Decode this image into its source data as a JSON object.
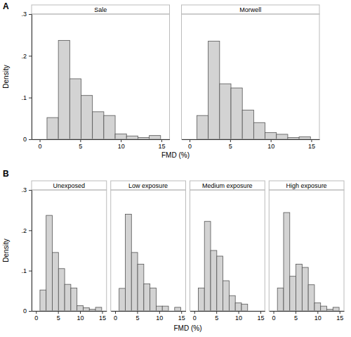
{
  "chart_data": [
    {
      "type": "histogram",
      "group": "A",
      "title": "Sale",
      "x_label": "FMD (%)",
      "y_label": "Density",
      "bins": [
        0.9,
        2.3,
        3.7,
        5.1,
        6.5,
        7.9,
        9.3,
        10.7,
        12.1,
        13.5,
        14.9
      ],
      "values": [
        0.052,
        0.237,
        0.145,
        0.105,
        0.066,
        0.057,
        0.013,
        0.008,
        0.004,
        0.009
      ],
      "color": "#d3d3d3",
      "xlim": [
        -1,
        16
      ],
      "xticks": [
        0,
        5,
        10,
        15
      ],
      "ylim": [
        0,
        0.3
      ],
      "yticks": [
        0,
        {
          "value": 0.1,
          "label": ".1"
        },
        {
          "value": 0.2,
          "label": ".2"
        },
        {
          "value": 0.3,
          "label": ".3"
        }
      ]
    },
    {
      "type": "histogram",
      "group": "A",
      "title": "Morwell",
      "bins": [
        0.9,
        2.3,
        3.7,
        5.1,
        6.5,
        7.9,
        9.3,
        10.7,
        12.1,
        13.5,
        14.9
      ],
      "values": [
        0.057,
        0.235,
        0.133,
        0.123,
        0.07,
        0.04,
        0.016,
        0.012,
        0.004,
        0.006
      ],
      "color": "#d3d3d3",
      "xlim": [
        -1,
        16
      ],
      "xticks": [
        0,
        5,
        10,
        15
      ],
      "ylim": [
        0,
        0.3
      ]
    },
    {
      "type": "histogram",
      "group": "B",
      "title": "Unexposed",
      "x_label": "FMD (%)",
      "y_label": "Density",
      "bins": [
        0.9,
        2.3,
        3.7,
        5.1,
        6.5,
        7.9,
        9.3,
        10.7,
        12.1,
        13.5,
        14.9
      ],
      "values": [
        0.052,
        0.237,
        0.145,
        0.105,
        0.066,
        0.057,
        0.013,
        0.008,
        0.004,
        0.009
      ],
      "color": "#d3d3d3",
      "xlim": [
        -1,
        16
      ],
      "xticks": [
        0,
        5,
        10,
        15
      ],
      "ylim": [
        0,
        0.3
      ],
      "yticks": [
        0,
        {
          "value": 0.1,
          "label": ".1"
        },
        {
          "value": 0.2,
          "label": ".2"
        },
        {
          "value": 0.3,
          "label": ".3"
        }
      ]
    },
    {
      "type": "histogram",
      "group": "B",
      "title": "Low exposure",
      "bins": [
        0.9,
        2.3,
        3.7,
        5.1,
        6.5,
        7.9,
        9.3,
        10.7,
        12.1,
        13.5,
        14.9
      ],
      "values": [
        0.056,
        0.24,
        0.145,
        0.116,
        0.067,
        0.057,
        0.012,
        0.012,
        0,
        0.009
      ],
      "color": "#d3d3d3",
      "xlim": [
        -1,
        16
      ],
      "xticks": [
        0,
        5,
        10,
        15
      ],
      "ylim": [
        0,
        0.3
      ]
    },
    {
      "type": "histogram",
      "group": "B",
      "title": "Medium exposure",
      "bins": [
        0.9,
        2.3,
        3.7,
        5.1,
        6.5,
        7.9,
        9.3,
        10.7,
        12.1,
        13.5,
        14.9
      ],
      "values": [
        0.057,
        0.222,
        0.15,
        0.136,
        0.075,
        0.038,
        0.02,
        0.017,
        0,
        0
      ],
      "color": "#d3d3d3",
      "xlim": [
        -1,
        16
      ],
      "xticks": [
        0,
        5,
        10,
        15
      ],
      "ylim": [
        0,
        0.3
      ]
    },
    {
      "type": "histogram",
      "group": "B",
      "title": "High exposure",
      "bins": [
        0.9,
        2.3,
        3.7,
        5.1,
        6.5,
        7.9,
        9.3,
        10.7,
        12.1,
        13.5,
        14.9
      ],
      "values": [
        0.057,
        0.244,
        0.086,
        0.116,
        0.108,
        0.065,
        0.02,
        0.012,
        0.004,
        0.009
      ],
      "color": "#d3d3d3",
      "xlim": [
        -1,
        16
      ],
      "xticks": [
        0,
        5,
        10,
        15
      ],
      "ylim": [
        0,
        0.3
      ]
    }
  ]
}
